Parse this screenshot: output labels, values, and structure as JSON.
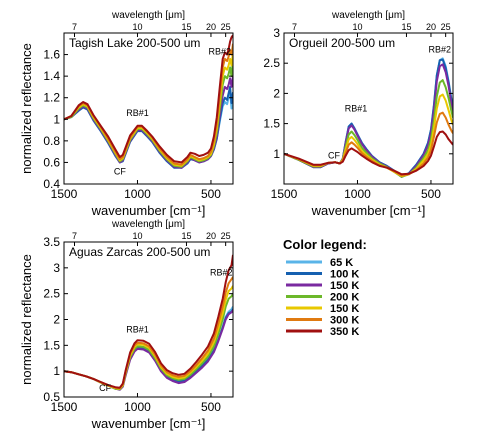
{
  "chart_data": [
    {
      "type": "line",
      "title": "Tagish Lake 200-500 um",
      "xlabel": "wavenumber [cm⁻¹]",
      "ylabel": "normalized reflectance",
      "top_xlabel": "wavelength [μm]",
      "xlim": [
        1500,
        350
      ],
      "ylim": [
        0.4,
        1.8
      ],
      "xticks": [
        1500,
        1000,
        500
      ],
      "yticks": [
        0.4,
        0.6,
        0.8,
        1,
        1.2,
        1.4,
        1.6
      ],
      "top_ticks": [
        7,
        10,
        15,
        20,
        25
      ],
      "annotations": [
        "RB#1",
        "CF",
        "RB#2"
      ],
      "x": [
        1500,
        1450,
        1400,
        1370,
        1340,
        1300,
        1250,
        1200,
        1150,
        1120,
        1100,
        1050,
        1000,
        970,
        940,
        900,
        850,
        800,
        750,
        700,
        660,
        640,
        610,
        580,
        550,
        520,
        500,
        480,
        460,
        440,
        420,
        405,
        390,
        380,
        370,
        360,
        350
      ],
      "series": [
        {
          "name": "65 K",
          "color": "#5ab4e8",
          "values": [
            1.0,
            1.02,
            1.09,
            1.12,
            1.1,
            1.0,
            0.9,
            0.79,
            0.67,
            0.6,
            0.62,
            0.8,
            0.9,
            0.9,
            0.86,
            0.8,
            0.7,
            0.62,
            0.56,
            0.55,
            0.6,
            0.64,
            0.62,
            0.6,
            0.61,
            0.63,
            0.66,
            0.72,
            0.82,
            0.98,
            1.12,
            1.16,
            1.14,
            1.2,
            1.26,
            1.1,
            1.2
          ]
        },
        {
          "name": "100 K",
          "color": "#1560b0",
          "values": [
            1.0,
            1.02,
            1.08,
            1.11,
            1.09,
            0.99,
            0.89,
            0.78,
            0.66,
            0.6,
            0.61,
            0.79,
            0.89,
            0.89,
            0.85,
            0.79,
            0.69,
            0.61,
            0.55,
            0.55,
            0.59,
            0.63,
            0.62,
            0.6,
            0.61,
            0.63,
            0.66,
            0.72,
            0.82,
            1.0,
            1.15,
            1.2,
            1.18,
            1.24,
            1.3,
            1.15,
            1.25
          ]
        },
        {
          "name": "150 K",
          "color": "#7a2aa0",
          "values": [
            1.0,
            1.02,
            1.09,
            1.12,
            1.1,
            1.0,
            0.9,
            0.79,
            0.67,
            0.6,
            0.62,
            0.8,
            0.9,
            0.9,
            0.86,
            0.8,
            0.7,
            0.62,
            0.56,
            0.55,
            0.6,
            0.64,
            0.62,
            0.6,
            0.61,
            0.63,
            0.66,
            0.73,
            0.84,
            1.04,
            1.22,
            1.3,
            1.28,
            1.32,
            1.38,
            1.3,
            1.4
          ]
        },
        {
          "name": "200 K",
          "color": "#6cb82a",
          "values": [
            1.0,
            1.02,
            1.1,
            1.13,
            1.11,
            1.01,
            0.91,
            0.8,
            0.68,
            0.61,
            0.63,
            0.81,
            0.91,
            0.91,
            0.87,
            0.81,
            0.71,
            0.63,
            0.57,
            0.56,
            0.61,
            0.65,
            0.63,
            0.61,
            0.62,
            0.64,
            0.67,
            0.75,
            0.88,
            1.1,
            1.32,
            1.4,
            1.38,
            1.42,
            1.48,
            1.4,
            1.55
          ]
        },
        {
          "name": "150 K",
          "color": "#e8c800",
          "values": [
            1.0,
            1.03,
            1.11,
            1.14,
            1.12,
            1.02,
            0.92,
            0.81,
            0.69,
            0.62,
            0.64,
            0.82,
            0.92,
            0.92,
            0.88,
            0.82,
            0.72,
            0.64,
            0.58,
            0.57,
            0.62,
            0.66,
            0.64,
            0.62,
            0.63,
            0.65,
            0.68,
            0.77,
            0.92,
            1.16,
            1.4,
            1.48,
            1.46,
            1.5,
            1.56,
            1.5,
            1.62
          ]
        },
        {
          "name": "300 K",
          "color": "#e07a10",
          "values": [
            1.0,
            1.03,
            1.12,
            1.15,
            1.13,
            1.03,
            0.93,
            0.82,
            0.7,
            0.63,
            0.65,
            0.83,
            0.93,
            0.93,
            0.89,
            0.83,
            0.73,
            0.65,
            0.59,
            0.58,
            0.63,
            0.67,
            0.65,
            0.63,
            0.64,
            0.66,
            0.7,
            0.8,
            0.96,
            1.22,
            1.48,
            1.56,
            1.54,
            1.58,
            1.64,
            1.6,
            1.7
          ]
        },
        {
          "name": "350 K",
          "color": "#a01010",
          "values": [
            1.0,
            1.03,
            1.13,
            1.16,
            1.14,
            1.04,
            0.94,
            0.84,
            0.72,
            0.65,
            0.67,
            0.85,
            0.94,
            0.94,
            0.9,
            0.84,
            0.75,
            0.67,
            0.61,
            0.6,
            0.65,
            0.69,
            0.68,
            0.66,
            0.67,
            0.69,
            0.73,
            0.84,
            1.02,
            1.3,
            1.56,
            1.62,
            1.6,
            1.65,
            1.72,
            1.76,
            1.78
          ]
        }
      ]
    },
    {
      "type": "line",
      "title": "Orgueil 200-500 um",
      "xlabel": "wavenumber [cm⁻¹]",
      "ylabel": "",
      "top_xlabel": "wavelength [μm]",
      "xlim": [
        1500,
        350
      ],
      "ylim": [
        0.5,
        3
      ],
      "xticks": [
        1500,
        1000,
        500
      ],
      "yticks": [
        1,
        1.5,
        2,
        2.5,
        3
      ],
      "top_ticks": [
        7,
        10,
        15,
        20,
        25
      ],
      "annotations": [
        "RB#1",
        "CF",
        "RB#2"
      ],
      "x": [
        1500,
        1400,
        1300,
        1250,
        1200,
        1150,
        1120,
        1100,
        1080,
        1060,
        1040,
        1020,
        1000,
        970,
        940,
        900,
        850,
        800,
        750,
        700,
        650,
        600,
        550,
        520,
        500,
        480,
        460,
        440,
        420,
        400,
        380,
        360,
        350
      ],
      "series": [
        {
          "name": "65 K",
          "color": "#5ab4e8",
          "values": [
            1.0,
            0.9,
            0.78,
            0.78,
            0.84,
            0.86,
            0.84,
            0.92,
            1.2,
            1.45,
            1.5,
            1.42,
            1.32,
            1.18,
            1.08,
            0.96,
            0.86,
            0.8,
            0.72,
            0.62,
            0.68,
            0.82,
            1.0,
            1.18,
            1.4,
            1.8,
            2.3,
            2.55,
            2.58,
            2.45,
            2.2,
            1.9,
            1.75
          ]
        },
        {
          "name": "100 K",
          "color": "#1560b0",
          "values": [
            1.0,
            0.9,
            0.78,
            0.78,
            0.84,
            0.86,
            0.84,
            0.92,
            1.2,
            1.45,
            1.5,
            1.42,
            1.32,
            1.18,
            1.08,
            0.96,
            0.86,
            0.8,
            0.72,
            0.62,
            0.68,
            0.82,
            1.0,
            1.18,
            1.4,
            1.8,
            2.3,
            2.55,
            2.56,
            2.42,
            2.18,
            1.88,
            1.75
          ]
        },
        {
          "name": "150 K",
          "color": "#7a2aa0",
          "values": [
            1.0,
            0.9,
            0.78,
            0.78,
            0.84,
            0.86,
            0.84,
            0.92,
            1.18,
            1.42,
            1.47,
            1.4,
            1.3,
            1.16,
            1.06,
            0.95,
            0.85,
            0.79,
            0.71,
            0.62,
            0.67,
            0.8,
            0.98,
            1.14,
            1.35,
            1.72,
            2.2,
            2.45,
            2.48,
            2.35,
            2.12,
            1.82,
            1.7
          ]
        },
        {
          "name": "200 K",
          "color": "#6cb82a",
          "values": [
            1.0,
            0.9,
            0.79,
            0.79,
            0.85,
            0.86,
            0.84,
            0.91,
            1.12,
            1.32,
            1.37,
            1.31,
            1.23,
            1.1,
            1.02,
            0.92,
            0.84,
            0.78,
            0.7,
            0.62,
            0.66,
            0.77,
            0.93,
            1.06,
            1.24,
            1.55,
            1.95,
            2.18,
            2.22,
            2.1,
            1.92,
            1.7,
            1.6
          ]
        },
        {
          "name": "150 K",
          "color": "#e8c800",
          "values": [
            1.0,
            0.91,
            0.8,
            0.8,
            0.85,
            0.86,
            0.84,
            0.9,
            1.07,
            1.24,
            1.28,
            1.23,
            1.16,
            1.05,
            0.98,
            0.9,
            0.82,
            0.77,
            0.7,
            0.63,
            0.66,
            0.75,
            0.89,
            1.0,
            1.15,
            1.42,
            1.75,
            1.95,
            1.98,
            1.88,
            1.72,
            1.55,
            1.48
          ]
        },
        {
          "name": "300 K",
          "color": "#e07a10",
          "values": [
            1.0,
            0.91,
            0.81,
            0.81,
            0.85,
            0.86,
            0.84,
            0.89,
            1.02,
            1.15,
            1.19,
            1.15,
            1.1,
            1.01,
            0.95,
            0.88,
            0.81,
            0.77,
            0.71,
            0.64,
            0.66,
            0.73,
            0.84,
            0.94,
            1.06,
            1.28,
            1.52,
            1.66,
            1.68,
            1.6,
            1.48,
            1.38,
            1.34
          ]
        },
        {
          "name": "350 K",
          "color": "#a01010",
          "values": [
            1.0,
            0.92,
            0.82,
            0.82,
            0.85,
            0.86,
            0.84,
            0.87,
            0.97,
            1.06,
            1.09,
            1.06,
            1.03,
            0.97,
            0.92,
            0.86,
            0.8,
            0.77,
            0.72,
            0.66,
            0.67,
            0.72,
            0.8,
            0.88,
            0.97,
            1.12,
            1.28,
            1.36,
            1.37,
            1.32,
            1.24,
            1.18,
            1.15
          ]
        }
      ]
    },
    {
      "type": "line",
      "title": "Aguas Zarcas 200-500 um",
      "xlabel": "wavenumber [cm⁻¹]",
      "ylabel": "normalized reflectance",
      "top_xlabel": "wavelength [μm]",
      "xlim": [
        1500,
        350
      ],
      "ylim": [
        0.5,
        3.5
      ],
      "xticks": [
        1500,
        1000,
        500
      ],
      "yticks": [
        0.5,
        1,
        1.5,
        2,
        2.5,
        3,
        3.5
      ],
      "top_ticks": [
        7,
        10,
        15,
        20,
        25
      ],
      "annotations": [
        "RB#1",
        "CF",
        "RB#2"
      ],
      "x": [
        1500,
        1450,
        1400,
        1350,
        1300,
        1250,
        1200,
        1150,
        1120,
        1100,
        1080,
        1050,
        1020,
        1000,
        960,
        920,
        880,
        840,
        800,
        760,
        720,
        680,
        640,
        600,
        560,
        520,
        480,
        450,
        420,
        400,
        380,
        360,
        350
      ],
      "series": [
        {
          "name": "65 K",
          "color": "#5ab4e8",
          "values": [
            1.0,
            0.98,
            0.94,
            0.9,
            0.85,
            0.78,
            0.72,
            0.66,
            0.65,
            0.72,
            0.95,
            1.25,
            1.4,
            1.45,
            1.44,
            1.38,
            1.22,
            1.02,
            0.9,
            0.84,
            0.8,
            0.82,
            0.9,
            1.0,
            1.1,
            1.22,
            1.4,
            1.6,
            1.85,
            2.05,
            2.15,
            2.2,
            2.25
          ]
        },
        {
          "name": "100 K",
          "color": "#1560b0",
          "values": [
            1.0,
            0.98,
            0.94,
            0.9,
            0.85,
            0.78,
            0.72,
            0.66,
            0.65,
            0.72,
            0.95,
            1.25,
            1.41,
            1.46,
            1.45,
            1.39,
            1.23,
            1.03,
            0.9,
            0.84,
            0.8,
            0.82,
            0.9,
            1.0,
            1.1,
            1.22,
            1.4,
            1.6,
            1.85,
            2.03,
            2.12,
            2.15,
            2.2
          ]
        },
        {
          "name": "150 K",
          "color": "#7a2aa0",
          "values": [
            1.0,
            0.98,
            0.94,
            0.9,
            0.85,
            0.78,
            0.72,
            0.66,
            0.64,
            0.7,
            0.92,
            1.22,
            1.38,
            1.43,
            1.42,
            1.36,
            1.2,
            1.0,
            0.87,
            0.81,
            0.77,
            0.79,
            0.87,
            0.97,
            1.07,
            1.19,
            1.37,
            1.58,
            1.82,
            2.0,
            2.1,
            2.14,
            2.18
          ]
        },
        {
          "name": "200 K",
          "color": "#6cb82a",
          "values": [
            1.0,
            0.98,
            0.94,
            0.9,
            0.85,
            0.78,
            0.72,
            0.66,
            0.65,
            0.72,
            0.96,
            1.27,
            1.43,
            1.48,
            1.47,
            1.41,
            1.25,
            1.05,
            0.92,
            0.86,
            0.83,
            0.85,
            0.93,
            1.04,
            1.15,
            1.28,
            1.48,
            1.72,
            2.0,
            2.25,
            2.4,
            2.45,
            2.5
          ]
        },
        {
          "name": "150 K",
          "color": "#e8c800",
          "values": [
            1.0,
            0.98,
            0.94,
            0.9,
            0.85,
            0.78,
            0.72,
            0.67,
            0.66,
            0.73,
            0.98,
            1.3,
            1.47,
            1.52,
            1.51,
            1.45,
            1.29,
            1.08,
            0.95,
            0.89,
            0.86,
            0.88,
            0.97,
            1.08,
            1.2,
            1.34,
            1.56,
            1.82,
            2.12,
            2.38,
            2.55,
            2.6,
            2.65
          ]
        },
        {
          "name": "300 K",
          "color": "#e07a10",
          "values": [
            1.0,
            0.98,
            0.94,
            0.9,
            0.85,
            0.79,
            0.73,
            0.68,
            0.67,
            0.75,
            1.0,
            1.33,
            1.5,
            1.55,
            1.54,
            1.48,
            1.32,
            1.11,
            0.98,
            0.92,
            0.89,
            0.91,
            1.0,
            1.12,
            1.25,
            1.4,
            1.63,
            1.92,
            2.25,
            2.52,
            2.7,
            2.78,
            2.82
          ]
        },
        {
          "name": "350 K",
          "color": "#a01010",
          "values": [
            1.0,
            0.98,
            0.94,
            0.9,
            0.85,
            0.79,
            0.73,
            0.69,
            0.68,
            0.76,
            1.02,
            1.36,
            1.54,
            1.6,
            1.59,
            1.53,
            1.37,
            1.15,
            1.02,
            0.96,
            0.93,
            0.95,
            1.05,
            1.18,
            1.32,
            1.48,
            1.73,
            2.05,
            2.4,
            2.72,
            2.95,
            3.05,
            3.25
          ]
        }
      ]
    }
  ],
  "legend": {
    "title": "Color legend:",
    "items": [
      {
        "label": "65 K",
        "color": "#5ab4e8"
      },
      {
        "label": "100 K",
        "color": "#1560b0"
      },
      {
        "label": "150 K",
        "color": "#7a2aa0"
      },
      {
        "label": "200 K",
        "color": "#6cb82a"
      },
      {
        "label": "150 K",
        "color": "#e8c800"
      },
      {
        "label": "300 K",
        "color": "#e07a10"
      },
      {
        "label": "350 K",
        "color": "#a01010"
      }
    ]
  }
}
